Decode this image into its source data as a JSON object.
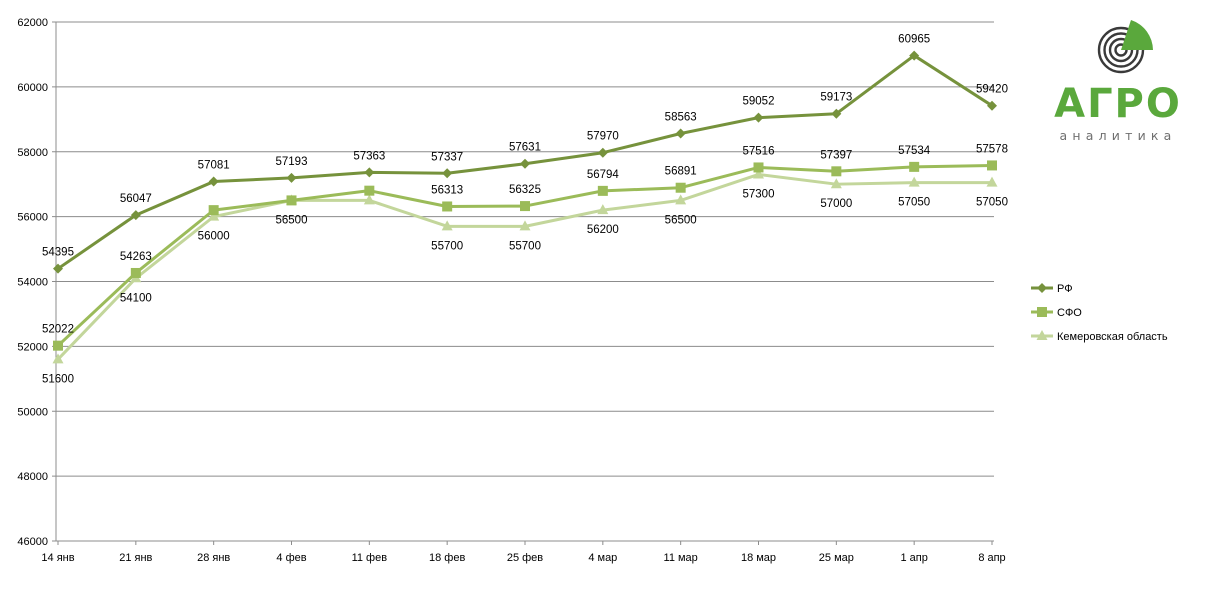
{
  "logo": {
    "word": "АГРО",
    "subtitle": "аналитика",
    "color_word": "#5aa83c",
    "color_sub": "#6f6f6f",
    "color_dark": "#3a3a3a"
  },
  "chart_data": {
    "type": "line",
    "title": "",
    "xlabel": "",
    "ylabel": "",
    "categories": [
      "14 янв",
      "21 янв",
      "28 янв",
      "4 фев",
      "11 фев",
      "18 фев",
      "25 фев",
      "4 мар",
      "11 мар",
      "18 мар",
      "25 мар",
      "1 апр",
      "8 апр"
    ],
    "ylim": [
      46000,
      62000
    ],
    "yticks": [
      46000,
      48000,
      50000,
      52000,
      54000,
      56000,
      58000,
      60000,
      62000
    ],
    "grid": true,
    "legend_position": "right",
    "series": [
      {
        "name": "РФ",
        "color": "#76923c",
        "marker": "diamond",
        "values": [
          54395,
          56047,
          57081,
          57193,
          57363,
          57337,
          57631,
          57970,
          58563,
          59052,
          59173,
          60965,
          59420
        ],
        "labels": [
          "54395",
          "56047",
          "57081",
          "57193",
          "57363",
          "57337",
          "57631",
          "57970",
          "58563",
          "59052",
          "59173",
          "60965",
          "59420"
        ],
        "label_placement": "above"
      },
      {
        "name": "СФО",
        "color": "#9bbb59",
        "marker": "square",
        "values": [
          52022,
          54263,
          56200,
          56500,
          56800,
          56313,
          56325,
          56794,
          56891,
          57516,
          57397,
          57534,
          57578
        ],
        "labels": [
          "52022",
          "54263",
          "",
          "",
          "",
          "56313",
          "56325",
          "56794",
          "56891",
          "57516",
          "57397",
          "57534",
          "57578"
        ],
        "label_placement": "above"
      },
      {
        "name": "Кемеровская область",
        "color": "#c3d69b",
        "marker": "triangle",
        "values": [
          51600,
          54100,
          56000,
          56500,
          56500,
          55700,
          55700,
          56200,
          56500,
          57300,
          57000,
          57050,
          57050
        ],
        "labels": [
          "51600",
          "54100",
          "56000",
          "56500",
          "",
          "55700",
          "55700",
          "56200",
          "56500",
          "57300",
          "57000",
          "57050",
          "57050"
        ],
        "label_placement": "below"
      }
    ]
  }
}
